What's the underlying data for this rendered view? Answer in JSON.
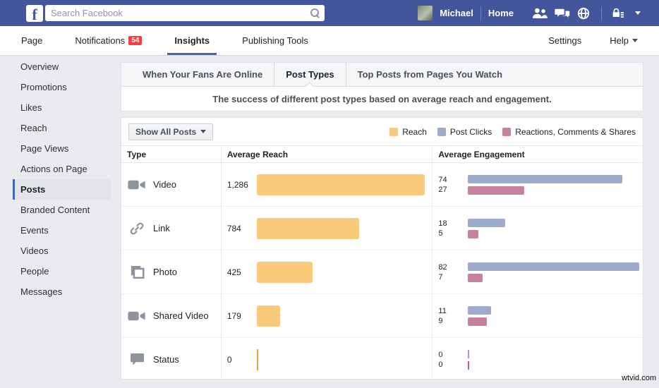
{
  "topbar": {
    "logo_letter": "f",
    "search_placeholder": "Search Facebook",
    "user_name": "Michael",
    "home_label": "Home"
  },
  "subnav": {
    "items": [
      {
        "label": "Page",
        "active": false,
        "badge": null
      },
      {
        "label": "Notifications",
        "active": false,
        "badge": "54"
      },
      {
        "label": "Insights",
        "active": true,
        "badge": null
      },
      {
        "label": "Publishing Tools",
        "active": false,
        "badge": null
      }
    ],
    "settings_label": "Settings",
    "help_label": "Help"
  },
  "sidebar": {
    "items": [
      "Overview",
      "Promotions",
      "Likes",
      "Reach",
      "Page Views",
      "Actions on Page",
      "Posts",
      "Branded Content",
      "Events",
      "Videos",
      "People",
      "Messages"
    ],
    "active": "Posts"
  },
  "tabs": {
    "items": [
      "When Your Fans Are Online",
      "Post Types",
      "Top Posts from Pages You Watch"
    ],
    "active": "Post Types"
  },
  "subtitle": "The success of different post types based on average reach and engagement.",
  "toolbar": {
    "filter_label": "Show All Posts"
  },
  "legend": [
    {
      "label": "Reach",
      "color": "#f8ca7a"
    },
    {
      "label": "Post Clicks",
      "color": "#9dabcd"
    },
    {
      "label": "Reactions, Comments & Shares",
      "color": "#c5819e"
    }
  ],
  "table": {
    "columns": [
      "Type",
      "Average Reach",
      "Average Engagement"
    ],
    "rows": [
      {
        "type": "Video",
        "icon": "video-camera-icon",
        "reach_display": "1,286",
        "reach": 1286,
        "post_clicks": 74,
        "reactions_comments_shares": 27
      },
      {
        "type": "Link",
        "icon": "link-icon",
        "reach_display": "784",
        "reach": 784,
        "post_clicks": 18,
        "reactions_comments_shares": 5
      },
      {
        "type": "Photo",
        "icon": "photo-icon",
        "reach_display": "425",
        "reach": 425,
        "post_clicks": 82,
        "reactions_comments_shares": 7
      },
      {
        "type": "Shared Video",
        "icon": "video-camera-icon",
        "reach_display": "179",
        "reach": 179,
        "post_clicks": 11,
        "reactions_comments_shares": 9
      },
      {
        "type": "Status",
        "icon": "status-bubble-icon",
        "reach_display": "0",
        "reach": 0,
        "post_clicks": 0,
        "reactions_comments_shares": 0
      }
    ]
  },
  "chart_data": {
    "type": "bar",
    "orientation": "horizontal",
    "title": "The success of different post types based on average reach and engagement.",
    "categories": [
      "Video",
      "Link",
      "Photo",
      "Shared Video",
      "Status"
    ],
    "series": [
      {
        "name": "Reach",
        "color": "#f8ca7a",
        "values": [
          1286,
          784,
          425,
          179,
          0
        ]
      },
      {
        "name": "Post Clicks",
        "color": "#9dabcd",
        "values": [
          74,
          18,
          82,
          11,
          0
        ]
      },
      {
        "name": "Reactions, Comments & Shares",
        "color": "#c5819e",
        "values": [
          27,
          5,
          7,
          9,
          0
        ]
      }
    ],
    "legend_position": "top-right",
    "grid": false
  },
  "watermark": "wtvid.com"
}
